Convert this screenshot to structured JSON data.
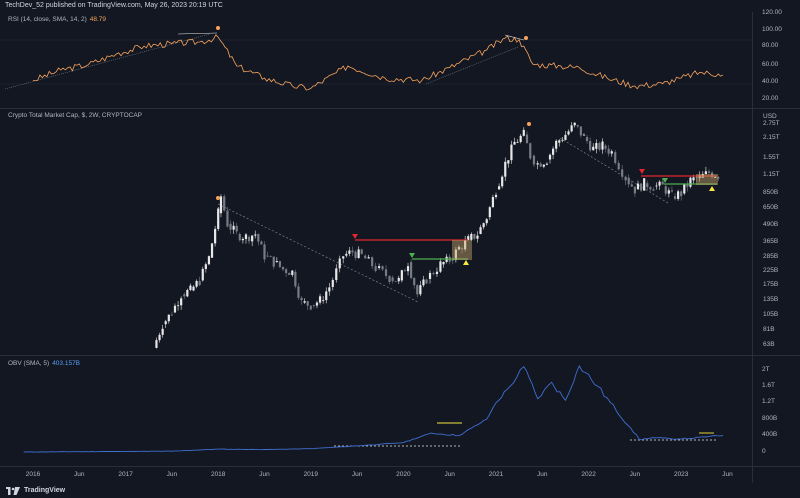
{
  "header": {
    "publisher": "TechDev_52 published on TradingView.com, May 26, 2023 20:19 UTC"
  },
  "footer": {
    "brand": "TradingView"
  },
  "colors": {
    "background": "#131722",
    "candle_up": "#e8e8e8",
    "candle_down": "#787b86",
    "rsi_line": "#f7a35c",
    "obv_line": "#3f6fd1",
    "resistance": "#e0262e",
    "support": "#4caf50",
    "marker": "#f7a35c",
    "highlight_yellow": "#f5e642",
    "trend_dash": "#8a8f9c"
  },
  "rsi_panel": {
    "label": "RSI (14, close, SMA, 14, 2)",
    "value": "48.79",
    "axis_ticks": [
      "120.00",
      "100.00",
      "80.00",
      "60.00",
      "40.00",
      "20.00"
    ]
  },
  "price_panel": {
    "label": "Crypto Total Market Cap, $, 2W, CRYPTOCAP",
    "currency": "USD",
    "axis_ticks": [
      "2.75T",
      "2.15T",
      "1.55T",
      "1.15T",
      "850B",
      "650B",
      "490B",
      "365B",
      "285B",
      "225B",
      "175B",
      "135B",
      "105B",
      "81B",
      "63B"
    ]
  },
  "obv_panel": {
    "label": "OBV (SMA, 5)",
    "value": "403.157B",
    "axis_ticks": [
      "2T",
      "1.6T",
      "1.2T",
      "800B",
      "400B",
      "0"
    ]
  },
  "time_axis": {
    "ticks": [
      "2016",
      "Jun",
      "2017",
      "Jun",
      "2018",
      "Jun",
      "2019",
      "Jun",
      "2020",
      "Jun",
      "2021",
      "Jun",
      "2022",
      "Jun",
      "2023",
      "Jun"
    ]
  },
  "chart_data": {
    "type": "candlestick",
    "interval": "2W",
    "x_range": [
      "2015-11",
      "2023-06"
    ],
    "y_scale": "log",
    "y_range_usd": [
      55000000000,
      3100000000000
    ],
    "price_closes_usd_billions": [
      [
        2017.3,
        60
      ],
      [
        2017.4,
        90
      ],
      [
        2017.5,
        110
      ],
      [
        2017.6,
        150
      ],
      [
        2017.7,
        160
      ],
      [
        2017.8,
        190
      ],
      [
        2017.9,
        280
      ],
      [
        2018.0,
        600
      ],
      [
        2018.03,
        800
      ],
      [
        2018.1,
        500
      ],
      [
        2018.2,
        420
      ],
      [
        2018.3,
        400
      ],
      [
        2018.4,
        420
      ],
      [
        2018.5,
        290
      ],
      [
        2018.6,
        260
      ],
      [
        2018.7,
        230
      ],
      [
        2018.8,
        220
      ],
      [
        2018.9,
        130
      ],
      [
        2019.0,
        125
      ],
      [
        2019.1,
        135
      ],
      [
        2019.2,
        170
      ],
      [
        2019.35,
        290
      ],
      [
        2019.45,
        310
      ],
      [
        2019.55,
        290
      ],
      [
        2019.7,
        235
      ],
      [
        2019.85,
        200
      ],
      [
        2019.95,
        190
      ],
      [
        2020.05,
        260
      ],
      [
        2020.15,
        150
      ],
      [
        2020.25,
        195
      ],
      [
        2020.4,
        250
      ],
      [
        2020.5,
        270
      ],
      [
        2020.6,
        330
      ],
      [
        2020.7,
        380
      ],
      [
        2020.8,
        420
      ],
      [
        2020.9,
        560
      ],
      [
        2021.0,
        900
      ],
      [
        2021.1,
        1400
      ],
      [
        2021.2,
        2000
      ],
      [
        2021.3,
        2300
      ],
      [
        2021.37,
        1600
      ],
      [
        2021.45,
        1400
      ],
      [
        2021.55,
        1500
      ],
      [
        2021.65,
        2000
      ],
      [
        2021.75,
        2300
      ],
      [
        2021.85,
        2700
      ],
      [
        2021.95,
        2200
      ],
      [
        2022.05,
        1800
      ],
      [
        2022.15,
        1900
      ],
      [
        2022.25,
        1700
      ],
      [
        2022.4,
        1100
      ],
      [
        2022.5,
        900
      ],
      [
        2022.6,
        1000
      ],
      [
        2022.7,
        950
      ],
      [
        2022.8,
        950
      ],
      [
        2022.9,
        800
      ],
      [
        2023.0,
        840
      ],
      [
        2023.1,
        1050
      ],
      [
        2023.2,
        1100
      ],
      [
        2023.3,
        1200
      ],
      [
        2023.4,
        1150
      ]
    ],
    "rsi_values": [
      [
        2016.0,
        42
      ],
      [
        2016.3,
        55
      ],
      [
        2016.6,
        62
      ],
      [
        2016.9,
        75
      ],
      [
        2017.2,
        85
      ],
      [
        2017.5,
        88
      ],
      [
        2017.8,
        90
      ],
      [
        2018.0,
        96
      ],
      [
        2018.2,
        60
      ],
      [
        2018.5,
        45
      ],
      [
        2018.8,
        35
      ],
      [
        2019.0,
        32
      ],
      [
        2019.4,
        60
      ],
      [
        2019.8,
        45
      ],
      [
        2020.2,
        42
      ],
      [
        2020.5,
        58
      ],
      [
        2020.9,
        80
      ],
      [
        2021.1,
        95
      ],
      [
        2021.25,
        93
      ],
      [
        2021.4,
        62
      ],
      [
        2021.7,
        60
      ],
      [
        2021.9,
        58
      ],
      [
        2022.2,
        45
      ],
      [
        2022.5,
        35
      ],
      [
        2022.8,
        38
      ],
      [
        2023.0,
        45
      ],
      [
        2023.2,
        52
      ],
      [
        2023.4,
        50
      ],
      [
        2023.45,
        48.79
      ]
    ],
    "obv_values": [
      [
        2015.9,
        0
      ],
      [
        2017.5,
        20
      ],
      [
        2018.0,
        70
      ],
      [
        2018.5,
        60
      ],
      [
        2019.0,
        80
      ],
      [
        2019.5,
        150
      ],
      [
        2020.0,
        230
      ],
      [
        2020.3,
        460
      ],
      [
        2020.6,
        400
      ],
      [
        2020.9,
        800
      ],
      [
        2021.0,
        1200
      ],
      [
        2021.15,
        1600
      ],
      [
        2021.3,
        2080
      ],
      [
        2021.45,
        1300
      ],
      [
        2021.6,
        1700
      ],
      [
        2021.75,
        1260
      ],
      [
        2021.9,
        2100
      ],
      [
        2022.1,
        1600
      ],
      [
        2022.3,
        1000
      ],
      [
        2022.45,
        600
      ],
      [
        2022.55,
        300
      ],
      [
        2022.7,
        350
      ],
      [
        2022.9,
        320
      ],
      [
        2023.1,
        330
      ],
      [
        2023.3,
        380
      ],
      [
        2023.45,
        403
      ]
    ]
  }
}
